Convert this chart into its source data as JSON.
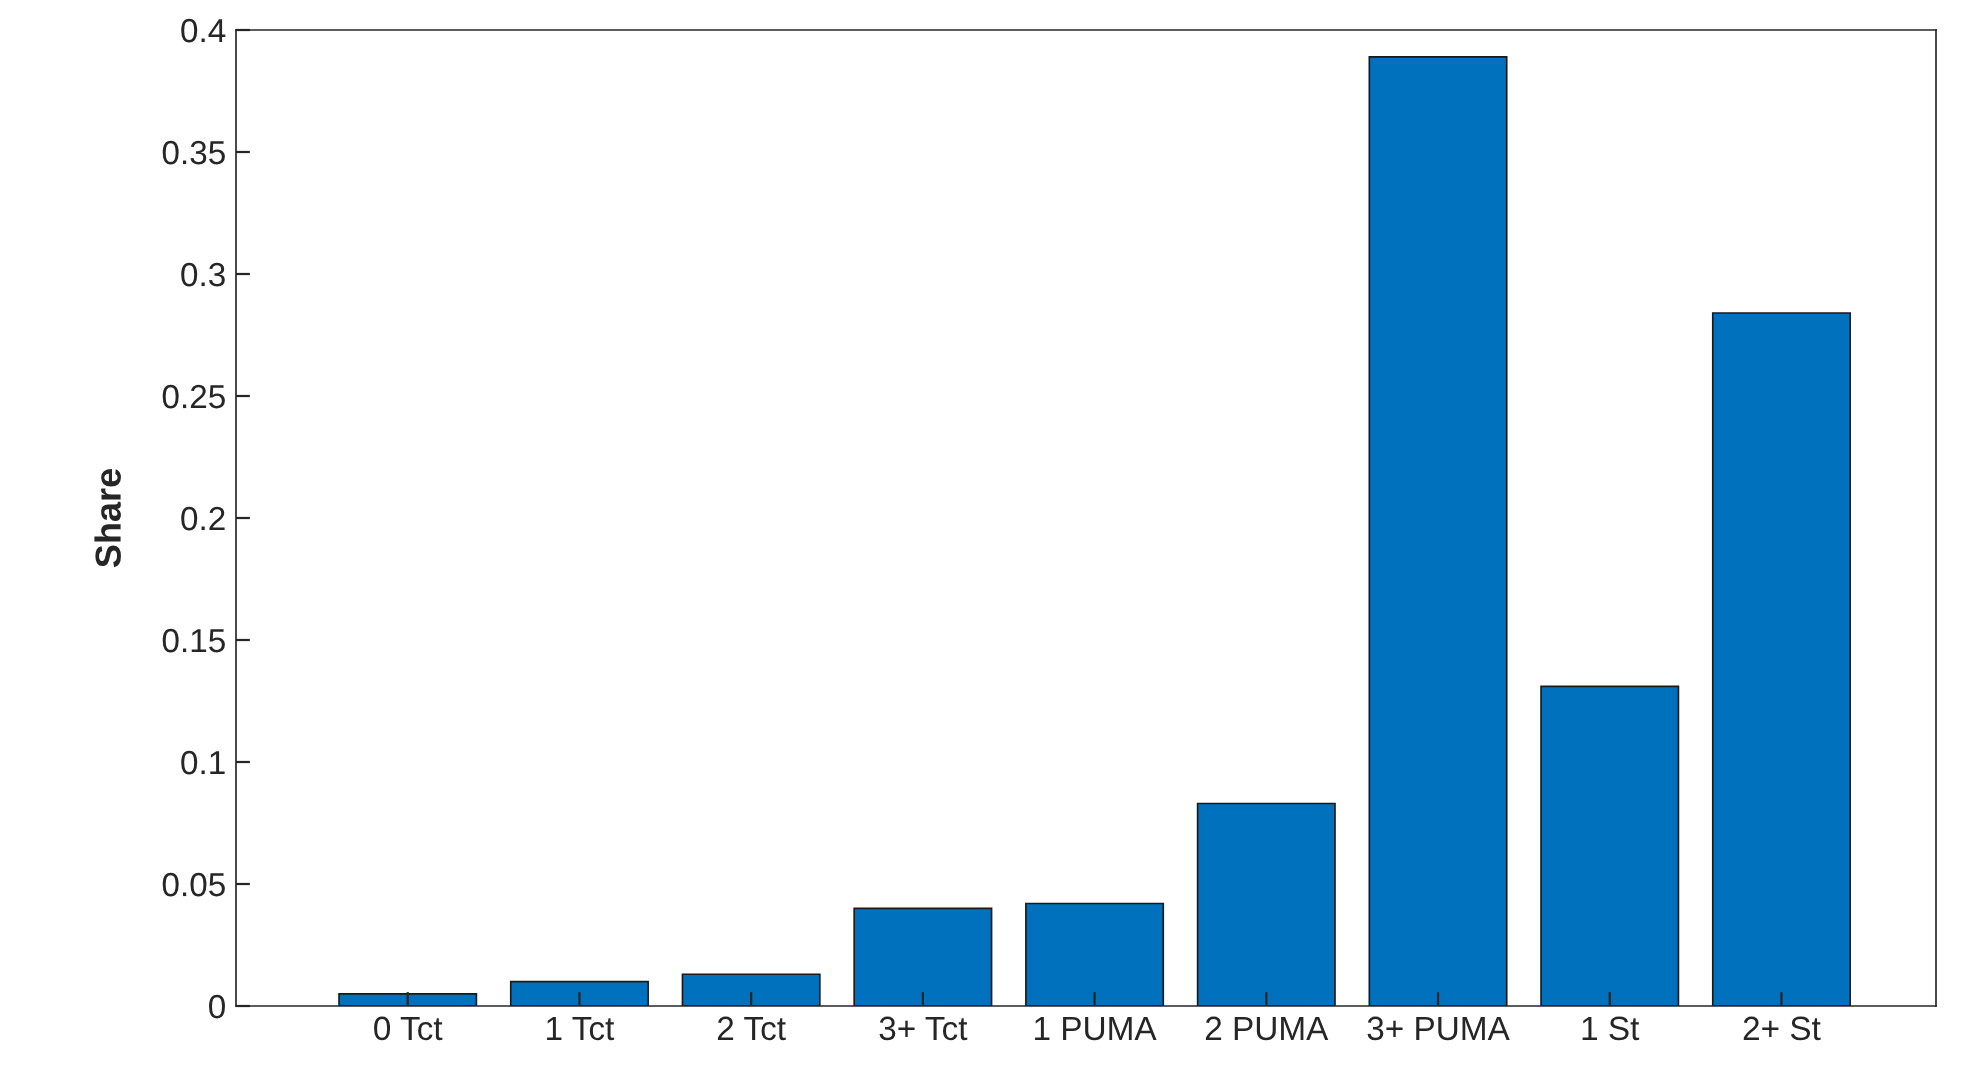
{
  "chart_data": {
    "type": "bar",
    "ylabel": "Share",
    "categories": [
      "0 Tct",
      "1 Tct",
      "2 Tct",
      "3+ Tct",
      "1 PUMA",
      "2 PUMA",
      "3+ PUMA",
      "1 St",
      "2+ St"
    ],
    "values": [
      0.005,
      0.01,
      0.013,
      0.04,
      0.042,
      0.083,
      0.389,
      0.131,
      0.284
    ],
    "color": "#0072bd",
    "ylim": [
      0,
      0.4
    ],
    "yticks": [
      0,
      0.05,
      0.1,
      0.15,
      0.2,
      0.25,
      0.3,
      0.35,
      0.4
    ],
    "grid": false,
    "legend": false
  }
}
